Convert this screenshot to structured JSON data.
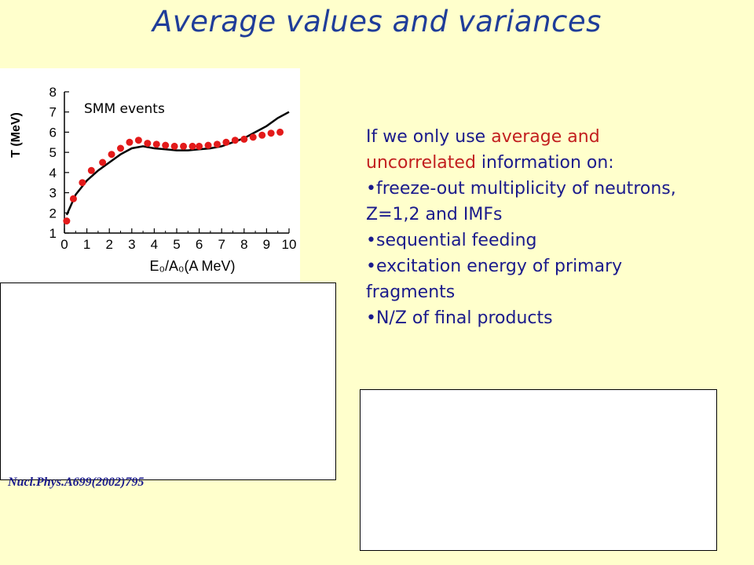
{
  "slide": {
    "title": "Average values and variances",
    "reference": "Nucl.Phys.A699(2002)795"
  },
  "text_block": {
    "intro_part1": "If we only use ",
    "intro_red": "average and uncorrelated",
    "intro_part2": " information on:",
    "bullets": [
      "•freeze-out multiplicity of neutrons, Z=1,2 and IMFs",
      "•sequential feeding",
      "•excitation energy  of primary fragments",
      "•N/Z of final products"
    ]
  },
  "chart_data": {
    "type": "scatter",
    "annotation": "SMM events",
    "xlabel": "E₀/A₀(A MeV)",
    "ylabel": "T (MeV)",
    "xlim": [
      0,
      10
    ],
    "ylim": [
      1,
      8
    ],
    "xticks": [
      "0",
      "1",
      "2",
      "3",
      "4",
      "5",
      "6",
      "7",
      "8",
      "9",
      "10"
    ],
    "yticks": [
      "1",
      "2",
      "3",
      "4",
      "5",
      "6",
      "7",
      "8"
    ],
    "points": {
      "x": [
        0.1,
        0.4,
        0.8,
        1.2,
        1.7,
        2.1,
        2.5,
        2.9,
        3.3,
        3.7,
        4.1,
        4.5,
        4.9,
        5.3,
        5.7,
        6.0,
        6.4,
        6.8,
        7.2,
        7.6,
        8.0,
        8.4,
        8.8,
        9.2,
        9.6
      ],
      "y": [
        1.6,
        2.7,
        3.5,
        4.1,
        4.5,
        4.9,
        5.2,
        5.5,
        5.6,
        5.45,
        5.4,
        5.35,
        5.3,
        5.3,
        5.3,
        5.3,
        5.35,
        5.4,
        5.5,
        5.6,
        5.65,
        5.75,
        5.85,
        5.95,
        6.0
      ]
    },
    "curve": {
      "x": [
        0.1,
        0.5,
        1.0,
        1.5,
        2.0,
        2.5,
        3.0,
        3.5,
        4.0,
        4.5,
        5.0,
        5.5,
        6.0,
        6.5,
        7.0,
        7.5,
        8.0,
        8.5,
        9.0,
        9.5,
        10.0
      ],
      "y": [
        1.9,
        2.9,
        3.6,
        4.1,
        4.5,
        4.9,
        5.2,
        5.3,
        5.2,
        5.15,
        5.1,
        5.1,
        5.15,
        5.2,
        5.3,
        5.5,
        5.7,
        6.0,
        6.3,
        6.7,
        7.0
      ]
    },
    "colors": {
      "points": "#e31a1a",
      "curve": "#000000"
    }
  },
  "colors": {
    "background": "#ffffcc",
    "title": "#1f3d99",
    "text": "#1a1a8c",
    "highlight": "#c21f1f"
  }
}
